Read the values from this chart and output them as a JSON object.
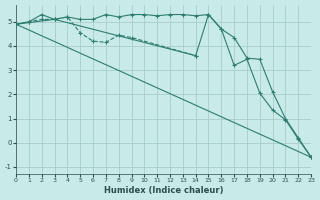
{
  "xlabel": "Humidex (Indice chaleur)",
  "background_color": "#c8eae8",
  "grid_color": "#a8ceca",
  "line_color": "#2e7d6e",
  "xlim": [
    0,
    23
  ],
  "ylim": [
    -1.3,
    5.7
  ],
  "xticks": [
    0,
    1,
    2,
    3,
    4,
    5,
    6,
    7,
    8,
    9,
    10,
    11,
    12,
    13,
    14,
    15,
    16,
    17,
    18,
    19,
    20,
    21,
    22,
    23
  ],
  "yticks": [
    -1,
    0,
    1,
    2,
    3,
    4,
    5
  ],
  "line1_x": [
    0,
    1,
    2,
    3,
    4,
    5,
    6,
    7,
    8,
    9,
    10,
    11,
    12,
    13,
    14,
    15,
    16,
    17,
    18,
    19,
    20,
    21,
    22,
    23
  ],
  "line1_y": [
    4.9,
    5.0,
    5.3,
    5.1,
    5.2,
    5.1,
    5.1,
    5.3,
    5.2,
    5.3,
    5.3,
    5.25,
    5.3,
    5.3,
    5.25,
    5.3,
    4.7,
    4.35,
    3.5,
    3.45,
    2.1,
    1.0,
    0.2,
    -0.6
  ],
  "line2_x": [
    0,
    1,
    2,
    3,
    4,
    5,
    6,
    7,
    8,
    9,
    14
  ],
  "line2_y": [
    4.9,
    5.0,
    5.1,
    5.1,
    5.2,
    4.55,
    4.2,
    4.15,
    4.45,
    4.35,
    3.6
  ],
  "line3_x": [
    0,
    3,
    14,
    15,
    16,
    17,
    18,
    19,
    20,
    21,
    22,
    23
  ],
  "line3_y": [
    4.9,
    5.1,
    3.6,
    5.3,
    4.7,
    3.2,
    3.45,
    2.05,
    1.35,
    0.95,
    0.15,
    -0.6
  ],
  "line4_x": [
    0,
    23
  ],
  "line4_y": [
    4.9,
    -0.6
  ]
}
